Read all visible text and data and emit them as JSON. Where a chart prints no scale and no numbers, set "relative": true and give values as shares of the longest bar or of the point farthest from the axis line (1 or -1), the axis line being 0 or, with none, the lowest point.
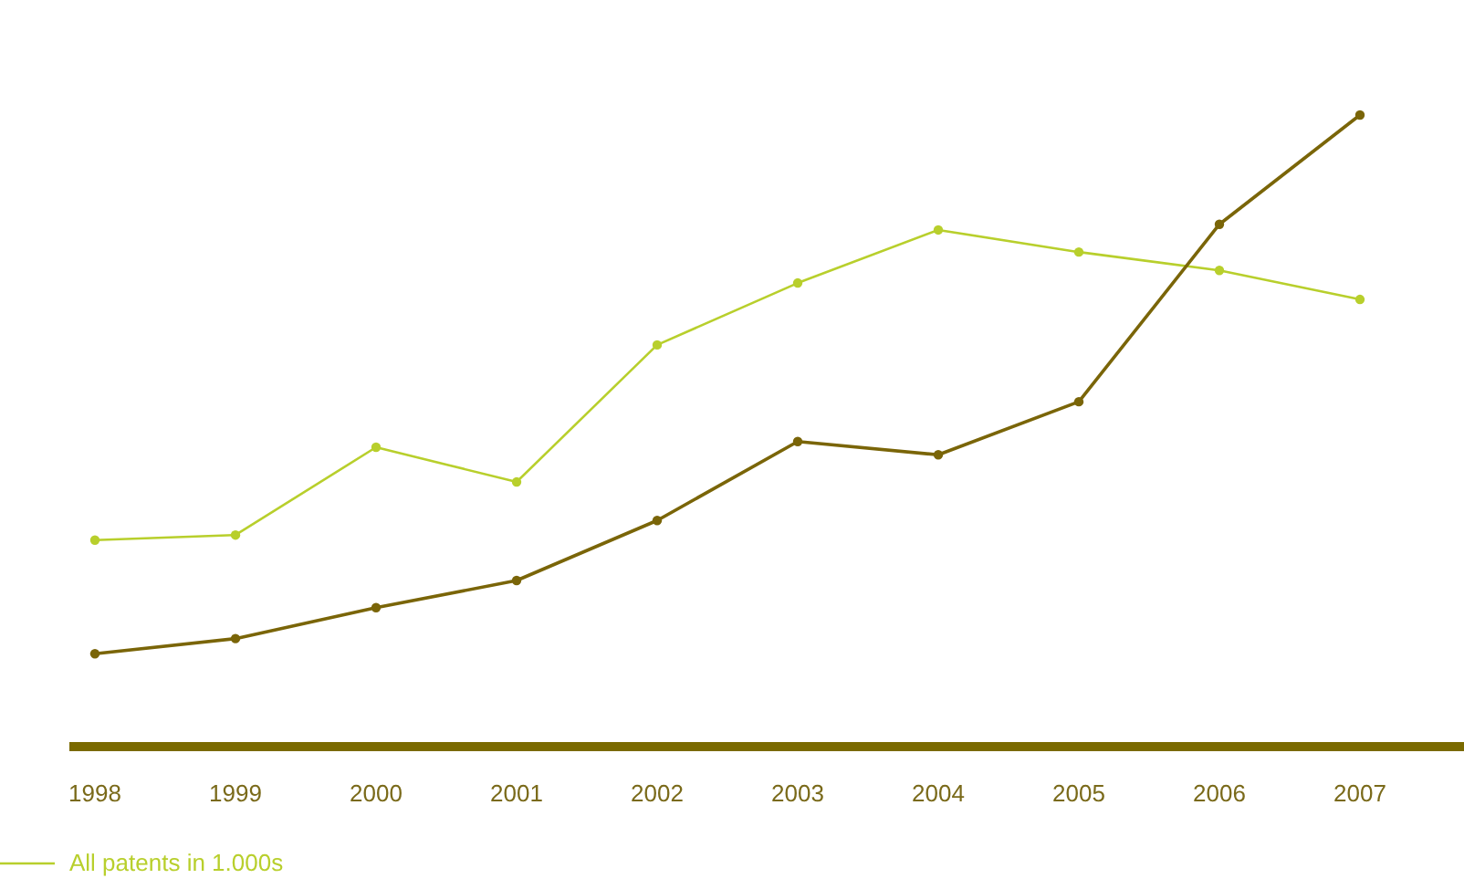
{
  "chart_data": {
    "type": "line",
    "relative": true,
    "categories": [
      "1998",
      "1999",
      "2000",
      "2001",
      "2002",
      "2003",
      "2004",
      "2005",
      "2006",
      "2007"
    ],
    "series": [
      {
        "name": "All patents in 1.000s",
        "color": "#b8cf2c",
        "values": [
          0.327,
          0.335,
          0.474,
          0.419,
          0.636,
          0.734,
          0.818,
          0.783,
          0.754,
          0.708
        ]
      },
      {
        "color": "#7a6508",
        "values": [
          0.147,
          0.171,
          0.22,
          0.263,
          0.358,
          0.483,
          0.462,
          0.546,
          0.827,
          1
        ]
      }
    ],
    "marker": "circle",
    "legend": "bottom left"
  }
}
